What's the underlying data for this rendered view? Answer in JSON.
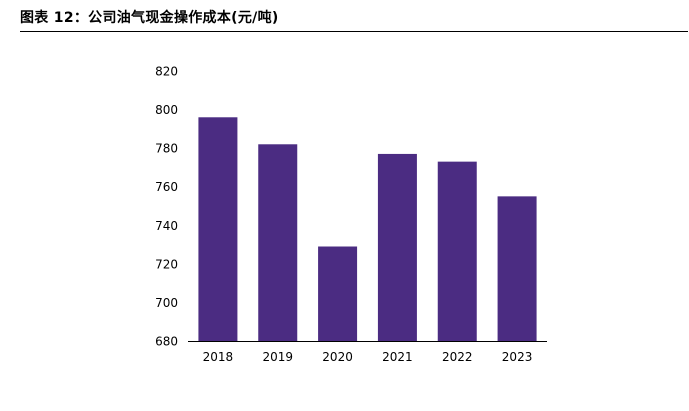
{
  "figure": {
    "title": "图表 12：公司油气现金操作成本(元/吨)"
  },
  "chart_data": {
    "type": "bar",
    "title": "公司油气现金操作成本(元/吨)",
    "categories": [
      "2018",
      "2019",
      "2020",
      "2021",
      "2022",
      "2023"
    ],
    "values": [
      796,
      782,
      729,
      777,
      773,
      755
    ],
    "ylim": [
      680,
      820
    ],
    "yticks": [
      680,
      700,
      720,
      740,
      760,
      780,
      800,
      820
    ],
    "xlabel": "",
    "ylabel": "",
    "grid": false,
    "legend": "none",
    "bar_color": "#4B2C82"
  }
}
